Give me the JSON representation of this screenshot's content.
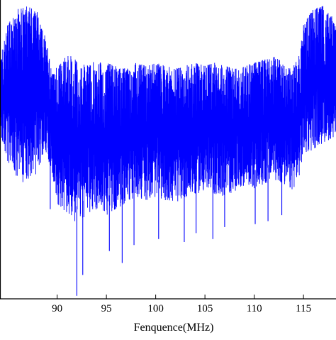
{
  "chart_data": {
    "type": "line",
    "xlabel": "Fenquence(MHz)",
    "ylabel": "",
    "xlim": [
      84.2,
      118.3
    ],
    "ylim": [
      -100,
      0
    ],
    "xticks": [
      90,
      95,
      100,
      105,
      110,
      115
    ],
    "xtick_labels": [
      "90",
      "95",
      "100",
      "105",
      "110",
      "115"
    ],
    "grid": false,
    "legend": "none",
    "series": [
      {
        "color": "#0000ff",
        "description_note": "",
        "envelope": {
          "x": [
            84.2,
            85.0,
            86.0,
            87.0,
            88.0,
            88.8,
            89.5,
            90.0,
            91.0,
            92.0,
            93.0,
            94.0,
            95.0,
            96.0,
            97.0,
            98.0,
            99.0,
            100.0,
            101.0,
            102.0,
            103.0,
            104.0,
            105.0,
            106.0,
            107.0,
            108.0,
            109.0,
            110.0,
            111.0,
            112.0,
            113.0,
            113.8,
            114.5,
            115.0,
            116.0,
            117.0,
            118.0,
            118.3
          ],
          "upper": [
            -20,
            -8,
            -3,
            -2,
            -4,
            -12,
            -25,
            -22,
            -18,
            -20,
            -22,
            -20,
            -21,
            -22,
            -23,
            -21,
            -22,
            -21,
            -22,
            -23,
            -22,
            -21,
            -22,
            -21,
            -22,
            -23,
            -22,
            -21,
            -20,
            -19,
            -21,
            -23,
            -18,
            -8,
            -3,
            -2,
            -6,
            -10
          ],
          "lower": [
            -45,
            -55,
            -62,
            -60,
            -58,
            -50,
            -58,
            -68,
            -72,
            -75,
            -72,
            -70,
            -72,
            -70,
            -68,
            -66,
            -67,
            -66,
            -67,
            -68,
            -66,
            -65,
            -64,
            -65,
            -66,
            -64,
            -62,
            -63,
            -62,
            -60,
            -62,
            -64,
            -60,
            -52,
            -50,
            -48,
            -46,
            -45
          ],
          "spikes": [
            {
              "x": 92.0,
              "y": -99
            },
            {
              "x": 92.6,
              "y": -92
            },
            {
              "x": 95.3,
              "y": -84
            },
            {
              "x": 96.6,
              "y": -88
            },
            {
              "x": 97.8,
              "y": -82
            },
            {
              "x": 100.3,
              "y": -80
            },
            {
              "x": 102.9,
              "y": -81
            },
            {
              "x": 104.1,
              "y": -78
            },
            {
              "x": 105.8,
              "y": -80
            },
            {
              "x": 107.0,
              "y": -76
            },
            {
              "x": 110.1,
              "y": -75
            },
            {
              "x": 111.4,
              "y": -74
            },
            {
              "x": 112.8,
              "y": -72
            },
            {
              "x": 89.3,
              "y": -70
            }
          ]
        }
      }
    ]
  }
}
